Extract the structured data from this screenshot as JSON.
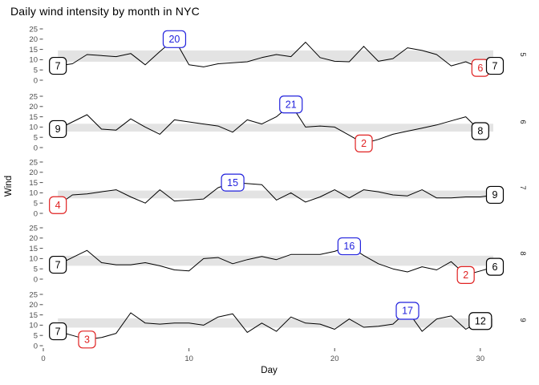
{
  "chart_data": {
    "type": "line",
    "title": "Daily wind intensity by month in NYC",
    "xlabel": "Day",
    "ylabel": "Wind",
    "x_ticks": [
      0,
      10,
      20,
      30
    ],
    "y_ticks": [
      0,
      5,
      10,
      15,
      20,
      25
    ],
    "xlim": [
      0,
      31
    ],
    "ylim": [
      0,
      25
    ],
    "grid": "off",
    "legend": "none",
    "facet_side": "right",
    "colors": {
      "line": "#000000",
      "band": "#e3e3e3",
      "first": "#000000",
      "last": "#000000",
      "max": "#2222dd",
      "min": "#e02222",
      "tick_text": "#4d4d4d",
      "facet_text": "#1a1a1a"
    },
    "facets": [
      {
        "label": "5",
        "band": [
          9.0,
          14.5
        ],
        "values": [
          7,
          8,
          12.5,
          12,
          11.5,
          13,
          7.5,
          14,
          20,
          7.5,
          6.5,
          8,
          8.5,
          9,
          11,
          12.5,
          11.5,
          18.5,
          11,
          9.2,
          9,
          16.5,
          9.2,
          10.5,
          15.8,
          14.5,
          12.5,
          7,
          9,
          6,
          7
        ],
        "labels": [
          {
            "day": 1,
            "value": 7,
            "kind": "first"
          },
          {
            "day": 9,
            "value": 20,
            "kind": "max"
          },
          {
            "day": 30,
            "value": 6,
            "kind": "min"
          },
          {
            "day": 31,
            "value": 7,
            "kind": "last"
          }
        ]
      },
      {
        "label": "6",
        "band": [
          7.8,
          11.6
        ],
        "values": [
          9,
          12.5,
          16,
          9,
          8.5,
          14,
          10,
          6.5,
          13.5,
          12.5,
          11.5,
          10.5,
          7.5,
          13.5,
          11.5,
          15,
          21,
          10,
          10.5,
          10,
          6,
          2,
          4,
          6.5,
          8,
          9.5,
          11,
          13,
          15,
          8
        ],
        "labels": [
          {
            "day": 1,
            "value": 9,
            "kind": "first"
          },
          {
            "day": 17,
            "value": 21,
            "kind": "max"
          },
          {
            "day": 22,
            "value": 2,
            "kind": "min"
          },
          {
            "day": 30,
            "value": 8,
            "kind": "last"
          }
        ]
      },
      {
        "label": "7",
        "band": [
          7.3,
          11.1
        ],
        "values": [
          4,
          9,
          9.5,
          10.5,
          11.5,
          8,
          5,
          11.5,
          6,
          6.5,
          7,
          12.5,
          15,
          14.5,
          14,
          6.5,
          10,
          5.5,
          8,
          11.5,
          7.5,
          11.5,
          10.5,
          9,
          8.5,
          11.5,
          7.5,
          7.5,
          8,
          8,
          9
        ],
        "labels": [
          {
            "day": 1,
            "value": 4,
            "kind": "min"
          },
          {
            "day": 13,
            "value": 15,
            "kind": "max"
          },
          {
            "day": 31,
            "value": 9,
            "kind": "last"
          }
        ]
      },
      {
        "label": "8",
        "band": [
          6.5,
          11.4
        ],
        "values": [
          7,
          10.5,
          14,
          8,
          7,
          7,
          8,
          6.5,
          4.5,
          4,
          10,
          10.5,
          7.5,
          9.5,
          11,
          9.5,
          12,
          12,
          12,
          13.5,
          16,
          11.5,
          7.5,
          5,
          3.5,
          6,
          4.5,
          8.5,
          2,
          4,
          6
        ],
        "labels": [
          {
            "day": 1,
            "value": 7,
            "kind": "first"
          },
          {
            "day": 21,
            "value": 16,
            "kind": "max"
          },
          {
            "day": 29,
            "value": 2,
            "kind": "min"
          },
          {
            "day": 31,
            "value": 6,
            "kind": "last"
          }
        ]
      },
      {
        "label": "9",
        "band": [
          8.8,
          13.3
        ],
        "values": [
          7,
          5,
          3,
          4,
          6,
          16,
          11,
          10.5,
          11,
          11,
          10,
          14,
          15.5,
          6.5,
          11,
          7,
          14,
          11,
          10.5,
          8,
          13,
          9,
          9.5,
          10.5,
          17,
          7,
          13,
          14.5,
          8,
          12
        ],
        "labels": [
          {
            "day": 1,
            "value": 7,
            "kind": "first"
          },
          {
            "day": 3,
            "value": 3,
            "kind": "min"
          },
          {
            "day": 25,
            "value": 17,
            "kind": "max"
          },
          {
            "day": 30,
            "value": 12,
            "kind": "last"
          }
        ]
      }
    ]
  }
}
